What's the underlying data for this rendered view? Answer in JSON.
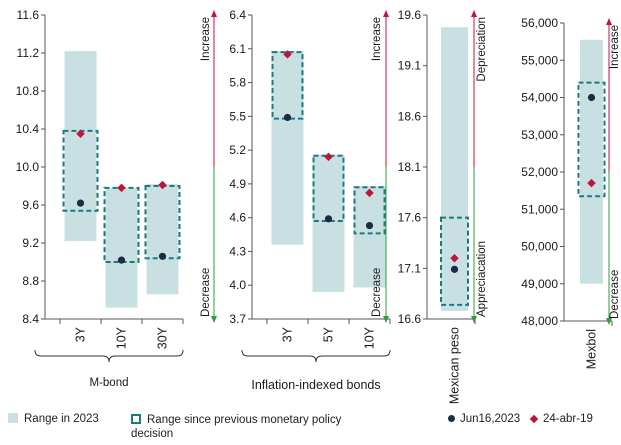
{
  "colors": {
    "range_fill": "#c9e0e3",
    "prev_border": "#1a7a80",
    "jun_dot": "#1c2b45",
    "apr_diamond": "#c0143c",
    "increase_arrow": "#c0143c",
    "decrease_arrow": "#2e9e3a",
    "axis": "#555555"
  },
  "legend": {
    "range_2023": "Range in 2023",
    "range_prev": "Range since previous monetary policy decision",
    "jun": "Jun16,2023",
    "apr": "24-abr-19"
  },
  "chart_data": [
    {
      "type": "range",
      "group_label": "M-bond",
      "categories": [
        "3Y",
        "10Y",
        "30Y"
      ],
      "ylim": [
        8.4,
        11.6
      ],
      "yticks": [
        "8.4",
        "8.8",
        "9.2",
        "9.6",
        "10.0",
        "10.4",
        "10.8",
        "11.2",
        "11.6"
      ],
      "range_2023": [
        [
          9.22,
          11.22
        ],
        [
          8.52,
          9.78
        ],
        [
          8.66,
          9.82
        ]
      ],
      "range_prev": [
        [
          9.54,
          10.38
        ],
        [
          9.0,
          9.78
        ],
        [
          9.04,
          9.8
        ]
      ],
      "jun16_2023": [
        9.62,
        9.02,
        9.06
      ],
      "apr24_19": [
        10.35,
        9.78,
        9.81
      ],
      "arrow_up": "Increase",
      "arrow_down": "Decrease"
    },
    {
      "type": "range",
      "group_label": "Inflation-indexed bonds",
      "categories": [
        "3Y",
        "5Y",
        "10Y"
      ],
      "ylim": [
        3.7,
        6.4
      ],
      "yticks": [
        "3.7",
        "4.0",
        "4.3",
        "4.6",
        "4.9",
        "5.2",
        "5.5",
        "5.8",
        "6.1",
        "6.4"
      ],
      "range_2023": [
        [
          4.36,
          6.08
        ],
        [
          3.94,
          5.16
        ],
        [
          3.98,
          4.88
        ]
      ],
      "range_prev": [
        [
          5.48,
          6.07
        ],
        [
          4.57,
          5.15
        ],
        [
          4.46,
          4.87
        ]
      ],
      "jun16_2023": [
        5.49,
        4.59,
        4.53
      ],
      "apr24_19": [
        6.05,
        5.14,
        4.82
      ],
      "arrow_up": "Increase",
      "arrow_down": "Decrease"
    },
    {
      "type": "range",
      "group_label": "",
      "categories": [
        "Mexican peso"
      ],
      "ylim": [
        16.6,
        19.6
      ],
      "yticks": [
        "16.6",
        "17.1",
        "17.6",
        "18.1",
        "18.6",
        "19.1",
        "19.6"
      ],
      "range_2023": [
        [
          16.68,
          19.48
        ]
      ],
      "range_prev": [
        [
          16.74,
          17.6
        ]
      ],
      "jun16_2023": [
        17.09
      ],
      "apr24_19": [
        17.2
      ],
      "arrow_up": "Depreciation",
      "arrow_down": "Appreciacation"
    },
    {
      "type": "range",
      "group_label": "",
      "categories": [
        "Mexbol"
      ],
      "ylim": [
        48000,
        56000
      ],
      "yticks": [
        "48,000",
        "49,000",
        "50,000",
        "51,000",
        "52,000",
        "53,000",
        "54,000",
        "55,000",
        "56,000"
      ],
      "range_2023": [
        [
          49000,
          55550
        ]
      ],
      "range_prev": [
        [
          51350,
          54400
        ]
      ],
      "jun16_2023": [
        54000
      ],
      "apr24_19": [
        51700
      ],
      "arrow_up": "Increase",
      "arrow_down": "Decrease"
    }
  ]
}
